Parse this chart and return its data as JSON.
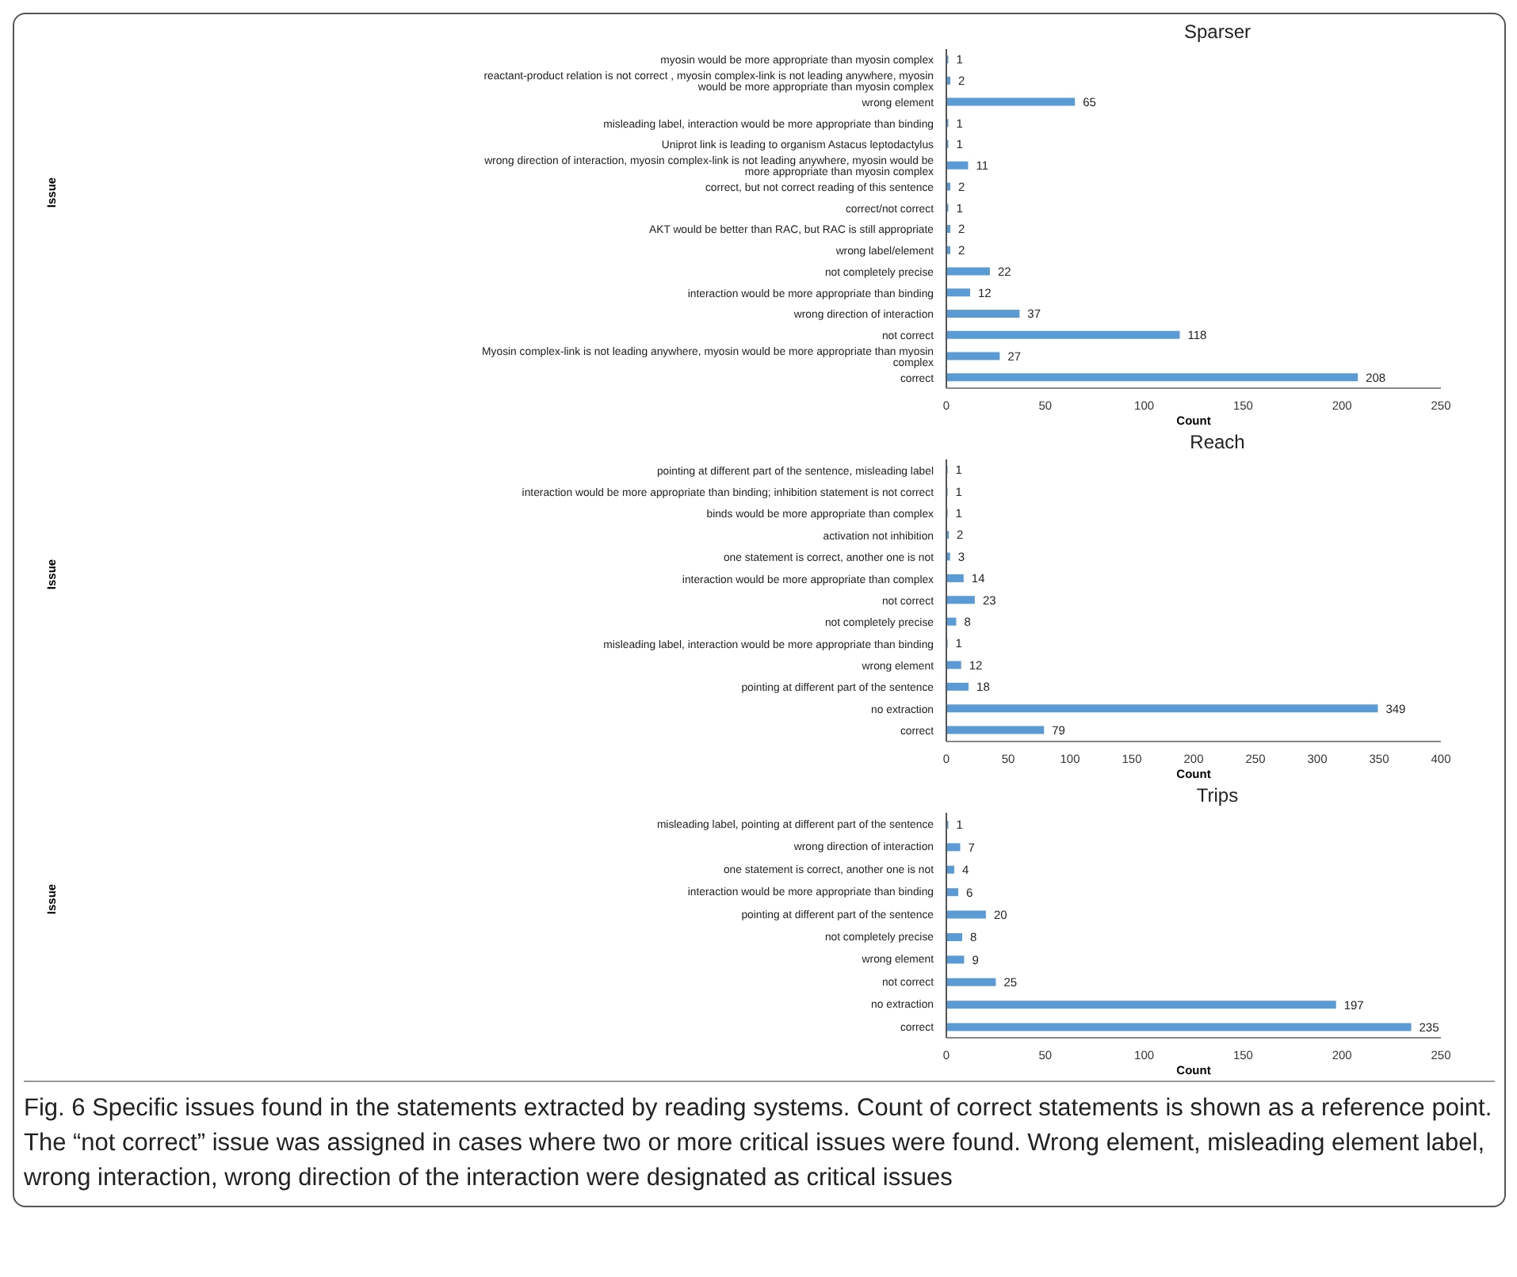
{
  "chart_data": [
    {
      "type": "bar",
      "orientation": "horizontal",
      "title": "Sparser",
      "xlabel": "Count",
      "ylabel": "Issue",
      "color": "#5b9bd5",
      "data_labels": true,
      "xlim": [
        0,
        250
      ],
      "xticks": [
        0,
        50,
        100,
        150,
        200,
        250
      ],
      "categories": [
        "myosin would be more appropriate than myosin complex",
        "reactant-product relation is not correct , myosin complex-link is not leading anywhere, myosin would be more appropriate than myosin complex",
        "wrong element",
        "misleading label, interaction would be more appropriate than binding",
        "Uniprot link is leading to organism Astacus leptodactylus",
        "wrong direction of interaction, myosin complex-link is not leading anywhere, myosin would be more appropriate than myosin complex",
        "correct, but not correct reading of this sentence",
        "correct/not correct",
        "AKT would be better than RAC, but RAC is still appropriate",
        "wrong label/element",
        "not completely precise",
        "interaction would be more appropriate than binding",
        "wrong direction of interaction",
        "not correct",
        "Myosin complex-link is not leading anywhere, myosin would be more appropriate than myosin complex",
        "correct"
      ],
      "values": [
        1,
        2,
        65,
        1,
        1,
        11,
        2,
        1,
        2,
        2,
        22,
        12,
        37,
        118,
        27,
        208
      ]
    },
    {
      "type": "bar",
      "orientation": "horizontal",
      "title": "Reach",
      "xlabel": "Count",
      "ylabel": "Issue",
      "color": "#5b9bd5",
      "data_labels": true,
      "xlim": [
        0,
        400
      ],
      "xticks": [
        0,
        50,
        100,
        150,
        200,
        250,
        300,
        350,
        400
      ],
      "categories": [
        "pointing at different part of the sentence, misleading label",
        "interaction would be more appropriate than binding; inhibition statement is not correct",
        "binds would be more appropriate than complex",
        "activation not inhibition",
        "one statement is correct, another one is not",
        "interaction would be more appropriate than complex",
        "not correct",
        "not completely precise",
        "misleading label, interaction would be more appropriate than binding",
        "wrong element",
        "pointing at different part of the sentence",
        "no extraction",
        "correct"
      ],
      "values": [
        1,
        1,
        1,
        2,
        3,
        14,
        23,
        8,
        1,
        12,
        18,
        349,
        79
      ]
    },
    {
      "type": "bar",
      "orientation": "horizontal",
      "title": "Trips",
      "xlabel": "Count",
      "ylabel": "Issue",
      "color": "#5b9bd5",
      "data_labels": true,
      "xlim": [
        0,
        250
      ],
      "xticks": [
        0,
        50,
        100,
        150,
        200,
        250
      ],
      "categories": [
        "misleading label, pointing at different part of the sentence",
        "wrong direction of interaction",
        "one statement is correct, another one is not",
        "interaction would be more appropriate than binding",
        "pointing at different part of the sentence",
        "not completely precise",
        "wrong element",
        "not correct",
        "no extraction",
        "correct"
      ],
      "values": [
        1,
        7,
        4,
        6,
        20,
        8,
        9,
        25,
        197,
        235
      ],
      "annotations": [
        "Fig. 6 Specific issues found in the statements extracted by reading systems. Count of correct statements is shown as a reference point. The “not correct” issue was assigned in cases where two or more critical issues were found. Wrong element, misleading element label, wrong interaction, wrong direction of the interaction were designated as critical issues"
      ]
    }
  ]
}
